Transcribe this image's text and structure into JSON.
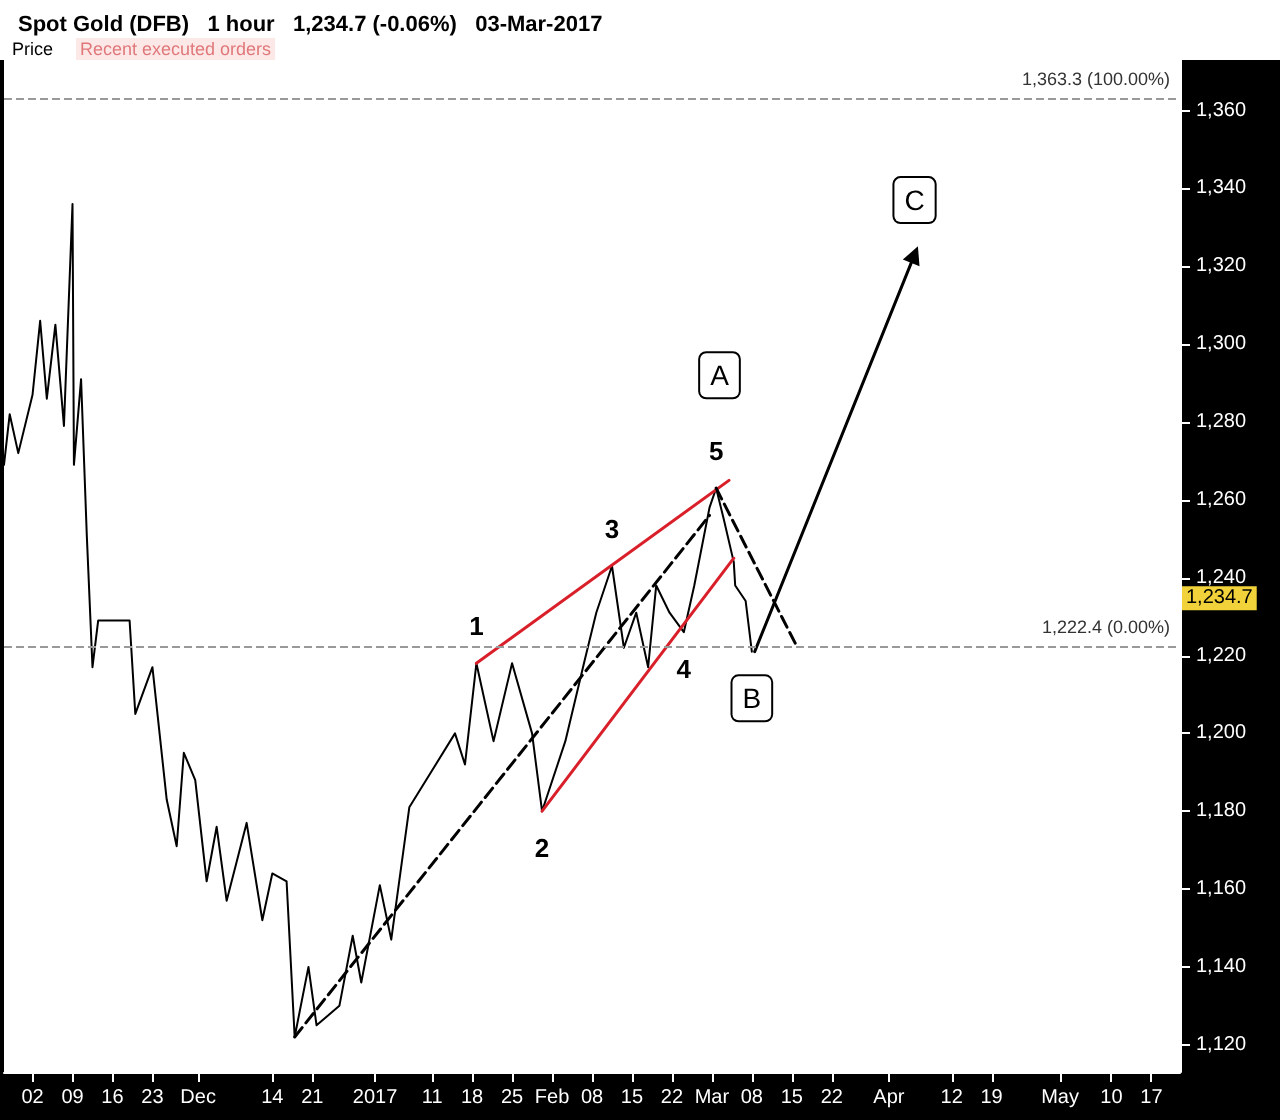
{
  "chart_data": {
    "type": "line",
    "title": "Spot Gold (DFB)   1 hour   1,234.7 (-0.06%)   03-Mar-2017",
    "xlim": [
      "2016-10-28",
      "2017-05-22"
    ],
    "xticks": [
      {
        "value": "2016-11-02",
        "label": "02"
      },
      {
        "value": "2016-11-09",
        "label": "09"
      },
      {
        "value": "2016-11-16",
        "label": "16"
      },
      {
        "value": "2016-11-23",
        "label": "23"
      },
      {
        "value": "2016-12-01",
        "label": "Dec"
      },
      {
        "value": "2016-12-14",
        "label": "14"
      },
      {
        "value": "2016-12-21",
        "label": "21"
      },
      {
        "value": "2017-01-01",
        "label": "2017"
      },
      {
        "value": "2017-01-11",
        "label": "11"
      },
      {
        "value": "2017-01-18",
        "label": "18"
      },
      {
        "value": "2017-01-25",
        "label": "25"
      },
      {
        "value": "2017-02-01",
        "label": "Feb"
      },
      {
        "value": "2017-02-08",
        "label": "08"
      },
      {
        "value": "2017-02-15",
        "label": "15"
      },
      {
        "value": "2017-02-22",
        "label": "22"
      },
      {
        "value": "2017-03-01",
        "label": "Mar"
      },
      {
        "value": "2017-03-08",
        "label": "08"
      },
      {
        "value": "2017-03-15",
        "label": "15"
      },
      {
        "value": "2017-03-22",
        "label": "22"
      },
      {
        "value": "2017-04-01",
        "label": "Apr"
      },
      {
        "value": "2017-04-12",
        "label": "12"
      },
      {
        "value": "2017-04-19",
        "label": "19"
      },
      {
        "value": "2017-05-01",
        "label": "May"
      },
      {
        "value": "2017-05-10",
        "label": "10"
      },
      {
        "value": "2017-05-17",
        "label": "17"
      }
    ],
    "ylim": [
      1113,
      1373
    ],
    "yticks": [
      {
        "value": 1120,
        "label": "1,120"
      },
      {
        "value": 1140,
        "label": "1,140"
      },
      {
        "value": 1160,
        "label": "1,160"
      },
      {
        "value": 1180,
        "label": "1,180"
      },
      {
        "value": 1200,
        "label": "1,200"
      },
      {
        "value": 1220,
        "label": "1,220"
      },
      {
        "value": 1240,
        "label": "1,240"
      },
      {
        "value": 1260,
        "label": "1,260"
      },
      {
        "value": 1280,
        "label": "1,280"
      },
      {
        "value": 1300,
        "label": "1,300"
      },
      {
        "value": 1320,
        "label": "1,320"
      },
      {
        "value": 1340,
        "label": "1,340"
      },
      {
        "value": 1360,
        "label": "1,360"
      }
    ],
    "series": [
      {
        "color": "#000000",
        "line_style": "solid",
        "marker": "none",
        "x": [
          "2016-10-28T00:00",
          "2016-10-29T00:00",
          "2016-10-30T12:00",
          "2016-11-02T00:00",
          "2016-11-03T08:00",
          "2016-11-04T12:00",
          "2016-11-06T00:00",
          "2016-11-07T12:00",
          "2016-11-09T00:00",
          "2016-11-09T06:00",
          "2016-11-10T12:00",
          "2016-11-11T12:00",
          "2016-11-12T12:00",
          "2016-11-13T12:00",
          "2016-11-19T00:00",
          "2016-11-20T00:00",
          "2016-11-23T00:00",
          "2016-11-25T12:00",
          "2016-11-27T06:00",
          "2016-11-28T12:00",
          "2016-11-30T12:00",
          "2016-12-02T12:00",
          "2016-12-04T06:00",
          "2016-12-06T00:00",
          "2016-12-09T12:00",
          "2016-12-12T06:00",
          "2016-12-14T00:00",
          "2016-12-16T12:00",
          "2016-12-17T22:00",
          "2016-12-20T08:00",
          "2016-12-21T18:00",
          "2016-12-25T18:00",
          "2016-12-28T02:00",
          "2016-12-29T14:00",
          "2017-01-01T20:00",
          "2017-01-03T20:00",
          "2017-01-07T00:00",
          "2017-01-15T00:00",
          "2017-01-16T18:00",
          "2017-01-18T18:00",
          "2017-01-21T18:00",
          "2017-01-25T00:00",
          "2017-01-28T12:00",
          "2017-01-30T06:00",
          "2017-02-03T08:00",
          "2017-02-06T18:00",
          "2017-02-08T18:00",
          "2017-02-11T12:00",
          "2017-02-13T14:00",
          "2017-02-15T18:00",
          "2017-02-17T20:00",
          "2017-02-19T06:00",
          "2017-02-21T14:00",
          "2017-02-24T02:00",
          "2017-02-25T22:00",
          "2017-02-28T14:00",
          "2017-03-01T18:00",
          "2017-03-03T02:00",
          "2017-03-04T20:00",
          "2017-03-05T02:00",
          "2017-03-06T22:00",
          "2017-03-08T00:00"
        ],
        "values": [
          1269,
          1282,
          1272,
          1287,
          1306,
          1286,
          1305,
          1279,
          1336,
          1269,
          1291,
          1251,
          1217,
          1229,
          1229,
          1205,
          1217,
          1183,
          1171,
          1195,
          1188,
          1162,
          1176,
          1157,
          1177,
          1152,
          1164,
          1162,
          1122,
          1140,
          1125,
          1130,
          1148,
          1136,
          1161,
          1147,
          1181,
          1200,
          1192,
          1218,
          1198,
          1218,
          1200,
          1180,
          1198,
          1219,
          1231,
          1243,
          1222,
          1231,
          1217,
          1238,
          1231,
          1226,
          1238,
          1258,
          1263,
          1255,
          1244,
          1238,
          1234,
          1221
        ]
      },
      {
        "color": "#d9202a",
        "line_style": "solid",
        "marker": "none",
        "x": [
          "2017-01-18T18:00",
          "2017-03-04T00:00"
        ],
        "values": [
          1218,
          1265
        ]
      },
      {
        "color": "#d9202a",
        "line_style": "solid",
        "marker": "none",
        "x": [
          "2017-01-30T06:00",
          "2017-03-04T20:00"
        ],
        "values": [
          1180,
          1245
        ]
      },
      {
        "color": "#000000",
        "line_style": "dashed",
        "marker": "none",
        "x": [
          "2016-12-17T22:00",
          "2017-02-28T14:00"
        ],
        "values": [
          1122,
          1256
        ]
      },
      {
        "color": "#000000",
        "line_style": "dashed",
        "marker": "none",
        "x": [
          "2017-03-01T18:00",
          "2017-03-16T00:00"
        ],
        "values": [
          1263,
          1222
        ]
      },
      {
        "color": "#000000",
        "line_style": "solid",
        "marker": "triangle",
        "x": [
          "2017-03-08T12:00",
          "2017-04-05T12:00"
        ],
        "values": [
          1221,
          1323
        ]
      }
    ],
    "ref_lines": [
      {
        "axis": "y",
        "value": 1363.3,
        "label": "1,363.3 (100.00%)",
        "color": "#999999",
        "line_style": "dashed"
      },
      {
        "axis": "y",
        "value": 1222.4,
        "label": "1,222.4 (0.00%)",
        "color": "#999999",
        "line_style": "dashed"
      }
    ],
    "annotations": [
      "Price",
      "Recent executed orders",
      {
        "text": "1,234.7",
        "y": 1234.7
      },
      {
        "text": "1",
        "x": "2017-01-18T18:00",
        "y": 1218
      },
      {
        "text": "2",
        "x": "2017-01-30T06:00",
        "y": 1180
      },
      {
        "text": "3",
        "x": "2017-02-11T12:00",
        "y": 1243
      },
      {
        "text": "4",
        "x": "2017-02-24T02:00",
        "y": 1226
      },
      {
        "text": "5",
        "x": "2017-03-01T18:00",
        "y": 1263
      },
      {
        "text": "A",
        "x": "2017-03-02T08:00",
        "y": 1292
      },
      {
        "text": "B",
        "x": "2017-03-08T00:00",
        "y": 1209
      },
      {
        "text": "C",
        "x": "2017-04-05T12:00",
        "y": 1337
      }
    ]
  }
}
